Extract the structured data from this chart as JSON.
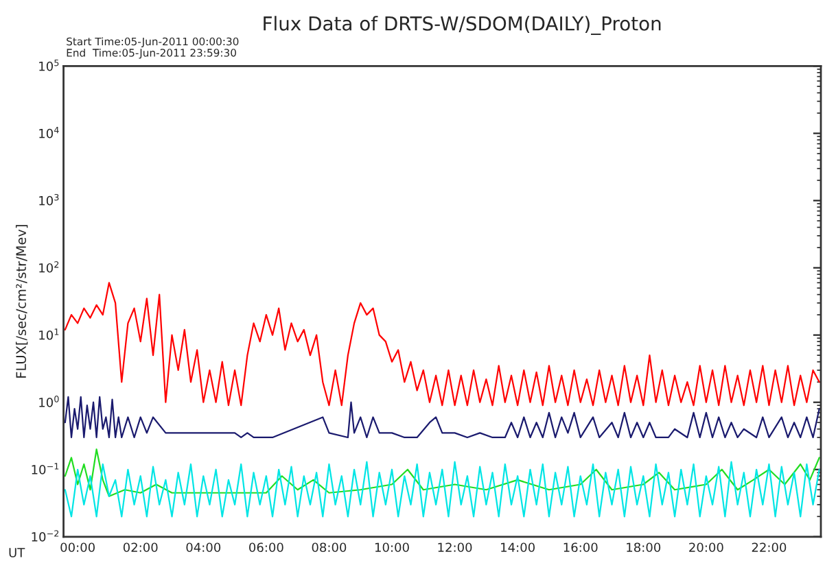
{
  "chart_data": {
    "type": "line",
    "title": "Flux Data of DRTS-W/SDOM(DAILY)_Proton",
    "ylabel": "FLUX[/sec/cm²/str/Mev]",
    "annotations": [
      "Start Time:05-Jun-2011 00:00:30",
      "End  Time:05-Jun-2011 23:59:30",
      "UT"
    ],
    "log": "y",
    "grid": false,
    "marker": "none",
    "line_style": "solid",
    "xlim": [
      -0.45,
      23.65
    ],
    "xticks": [
      {
        "value": 0,
        "label": "00:00"
      },
      {
        "value": 2,
        "label": "02:00"
      },
      {
        "value": 4,
        "label": "04:00"
      },
      {
        "value": 6,
        "label": "06:00"
      },
      {
        "value": 8,
        "label": "08:00"
      },
      {
        "value": 10,
        "label": "10:00"
      },
      {
        "value": 12,
        "label": "12:00"
      },
      {
        "value": 14,
        "label": "14:00"
      },
      {
        "value": 16,
        "label": "16:00"
      },
      {
        "value": 18,
        "label": "18:00"
      },
      {
        "value": 20,
        "label": "20:00"
      },
      {
        "value": 22,
        "label": "22:00"
      }
    ],
    "ylim": [
      0.01,
      100000
    ],
    "yticks": [
      {
        "value": 0.01,
        "label": "10$^{−2}$"
      },
      {
        "value": 0.1,
        "label": "10$^{−1}$"
      },
      {
        "value": 1,
        "label": "10$^{0}$"
      },
      {
        "value": 10,
        "label": "10$^{1}$"
      },
      {
        "value": 100,
        "label": "10$^{2}$"
      },
      {
        "value": 1000,
        "label": "10$^{3}$"
      },
      {
        "value": 10000,
        "label": "10$^{4}$"
      },
      {
        "value": 100000,
        "label": "10$^{5}$"
      }
    ],
    "series": [
      {
        "color": "#ff0000",
        "x": [
          -0.4,
          -0.2,
          0,
          0.2,
          0.4,
          0.6,
          0.8,
          1.0,
          1.2,
          1.4,
          1.6,
          1.8,
          2.0,
          2.2,
          2.4,
          2.6,
          2.8,
          3.0,
          3.2,
          3.4,
          3.6,
          3.8,
          4.0,
          4.2,
          4.4,
          4.6,
          4.8,
          5.0,
          5.2,
          5.4,
          5.6,
          5.8,
          6.0,
          6.2,
          6.4,
          6.6,
          6.8,
          7.0,
          7.2,
          7.4,
          7.6,
          7.8,
          8.0,
          8.2,
          8.4,
          8.6,
          8.8,
          9.0,
          9.2,
          9.4,
          9.6,
          9.8,
          10.0,
          10.2,
          10.4,
          10.6,
          10.8,
          11.0,
          11.2,
          11.4,
          11.6,
          11.8,
          12.0,
          12.2,
          12.4,
          12.6,
          12.8,
          13.0,
          13.2,
          13.4,
          13.6,
          13.8,
          14.0,
          14.2,
          14.4,
          14.6,
          14.8,
          15.0,
          15.2,
          15.4,
          15.6,
          15.8,
          16.0,
          16.2,
          16.4,
          16.6,
          16.8,
          17.0,
          17.2,
          17.4,
          17.6,
          17.8,
          18.0,
          18.2,
          18.4,
          18.6,
          18.8,
          19.0,
          19.2,
          19.4,
          19.6,
          19.8,
          20.0,
          20.2,
          20.4,
          20.6,
          20.8,
          21.0,
          21.2,
          21.4,
          21.6,
          21.8,
          22.0,
          22.2,
          22.4,
          22.6,
          22.8,
          23.0,
          23.2,
          23.4,
          23.6
        ],
        "values": [
          12,
          20,
          15,
          25,
          18,
          28,
          20,
          60,
          30,
          2,
          15,
          25,
          8,
          35,
          5,
          40,
          1,
          10,
          3,
          12,
          2,
          6,
          1,
          3,
          1,
          4,
          0.9,
          3,
          0.9,
          5,
          15,
          8,
          20,
          10,
          25,
          6,
          15,
          8,
          12,
          5,
          10,
          2,
          0.9,
          3,
          0.9,
          5,
          15,
          30,
          20,
          25,
          10,
          8,
          4,
          6,
          2,
          4,
          1.5,
          3,
          1,
          2.5,
          0.9,
          3,
          0.9,
          2.5,
          0.9,
          3,
          1,
          2.2,
          0.9,
          3.5,
          1,
          2.5,
          0.9,
          3,
          1,
          2.8,
          0.9,
          3.5,
          1,
          2.5,
          0.9,
          3,
          1,
          2.2,
          0.9,
          3,
          1,
          2.5,
          0.9,
          3.5,
          1,
          2.5,
          0.9,
          5,
          1,
          3,
          0.9,
          2.5,
          1,
          2,
          0.9,
          3.5,
          1,
          3,
          0.9,
          3.5,
          1,
          2.5,
          0.9,
          3,
          1,
          3.5,
          0.9,
          3,
          1,
          3.5,
          0.9,
          2.5,
          1,
          3,
          2
        ]
      },
      {
        "color": "#1a1a6e",
        "x": [
          -0.4,
          -0.3,
          -0.2,
          -0.1,
          0,
          0.1,
          0.2,
          0.3,
          0.4,
          0.5,
          0.6,
          0.7,
          0.8,
          0.9,
          1.0,
          1.1,
          1.2,
          1.3,
          1.4,
          1.6,
          1.8,
          2.0,
          2.2,
          2.4,
          2.8,
          5.0,
          5.2,
          5.4,
          5.6,
          6.2,
          7.8,
          8.0,
          8.6,
          8.7,
          8.8,
          9.0,
          9.2,
          9.4,
          9.6,
          10.0,
          10.4,
          10.8,
          11.2,
          11.4,
          11.6,
          12.0,
          12.4,
          12.8,
          13.2,
          13.6,
          13.8,
          14.0,
          14.2,
          14.4,
          14.6,
          14.8,
          15.0,
          15.2,
          15.4,
          15.6,
          15.8,
          16.0,
          16.4,
          16.6,
          17.0,
          17.2,
          17.4,
          17.6,
          17.8,
          18.0,
          18.2,
          18.4,
          18.8,
          19.0,
          19.4,
          19.6,
          19.8,
          20.0,
          20.2,
          20.4,
          20.6,
          20.8,
          21.0,
          21.2,
          21.6,
          21.8,
          22.0,
          22.4,
          22.6,
          22.8,
          23.0,
          23.2,
          23.4,
          23.6
        ],
        "values": [
          0.5,
          1.2,
          0.3,
          0.8,
          0.4,
          1.2,
          0.3,
          0.9,
          0.4,
          1.0,
          0.3,
          1.2,
          0.4,
          0.6,
          0.3,
          1.1,
          0.3,
          0.6,
          0.3,
          0.6,
          0.3,
          0.6,
          0.35,
          0.6,
          0.35,
          0.35,
          0.3,
          0.35,
          0.3,
          0.3,
          0.6,
          0.35,
          0.3,
          1.0,
          0.35,
          0.6,
          0.3,
          0.6,
          0.35,
          0.35,
          0.3,
          0.3,
          0.5,
          0.6,
          0.35,
          0.35,
          0.3,
          0.35,
          0.3,
          0.3,
          0.5,
          0.3,
          0.6,
          0.3,
          0.5,
          0.3,
          0.7,
          0.3,
          0.6,
          0.35,
          0.7,
          0.3,
          0.6,
          0.3,
          0.5,
          0.3,
          0.7,
          0.3,
          0.5,
          0.3,
          0.5,
          0.3,
          0.3,
          0.4,
          0.3,
          0.7,
          0.3,
          0.7,
          0.3,
          0.6,
          0.3,
          0.5,
          0.3,
          0.4,
          0.3,
          0.6,
          0.3,
          0.6,
          0.3,
          0.5,
          0.3,
          0.6,
          0.3,
          0.8
        ]
      },
      {
        "color": "#22dd22",
        "x": [
          -0.4,
          -0.2,
          0,
          0.2,
          0.4,
          0.6,
          0.8,
          1.0,
          1.5,
          2.0,
          2.5,
          3.0,
          4.0,
          5.0,
          6.0,
          6.5,
          7.0,
          7.5,
          8.0,
          9.0,
          10.0,
          10.5,
          11.0,
          12.0,
          13.0,
          14.0,
          15.0,
          16.0,
          16.5,
          17.0,
          18.0,
          18.5,
          19.0,
          20.0,
          20.5,
          21.0,
          21.5,
          22.0,
          22.5,
          23.0,
          23.3,
          23.6
        ],
        "values": [
          0.08,
          0.15,
          0.06,
          0.12,
          0.05,
          0.2,
          0.07,
          0.04,
          0.05,
          0.045,
          0.06,
          0.045,
          0.045,
          0.045,
          0.045,
          0.08,
          0.05,
          0.07,
          0.045,
          0.05,
          0.06,
          0.1,
          0.05,
          0.06,
          0.05,
          0.07,
          0.05,
          0.06,
          0.1,
          0.05,
          0.06,
          0.09,
          0.05,
          0.06,
          0.1,
          0.05,
          0.07,
          0.1,
          0.06,
          0.12,
          0.07,
          0.15
        ]
      },
      {
        "color": "#00e5e5",
        "x": [
          -0.4,
          -0.2,
          0,
          0.2,
          0.4,
          0.6,
          0.8,
          1.0,
          1.2,
          1.4,
          1.6,
          1.8,
          2.0,
          2.2,
          2.4,
          2.6,
          2.8,
          3.0,
          3.2,
          3.4,
          3.6,
          3.8,
          4.0,
          4.2,
          4.4,
          4.6,
          4.8,
          5.0,
          5.2,
          5.4,
          5.6,
          5.8,
          6.0,
          6.2,
          6.4,
          6.6,
          6.8,
          7.0,
          7.2,
          7.4,
          7.6,
          7.8,
          8.0,
          8.2,
          8.4,
          8.6,
          8.8,
          9.0,
          9.2,
          9.4,
          9.6,
          9.8,
          10.0,
          10.2,
          10.4,
          10.6,
          10.8,
          11.0,
          11.2,
          11.4,
          11.6,
          11.8,
          12.0,
          12.2,
          12.4,
          12.6,
          12.8,
          13.0,
          13.2,
          13.4,
          13.6,
          13.8,
          14.0,
          14.2,
          14.4,
          14.6,
          14.8,
          15.0,
          15.2,
          15.4,
          15.6,
          15.8,
          16.0,
          16.2,
          16.4,
          16.6,
          16.8,
          17.0,
          17.2,
          17.4,
          17.6,
          17.8,
          18.0,
          18.2,
          18.4,
          18.6,
          18.8,
          19.0,
          19.2,
          19.4,
          19.6,
          19.8,
          20.0,
          20.2,
          20.4,
          20.6,
          20.8,
          21.0,
          21.2,
          21.4,
          21.6,
          21.8,
          22.0,
          22.2,
          22.4,
          22.6,
          22.8,
          23.0,
          23.2,
          23.4,
          23.6
        ],
        "values": [
          0.05,
          0.02,
          0.1,
          0.03,
          0.08,
          0.02,
          0.12,
          0.04,
          0.07,
          0.02,
          0.1,
          0.03,
          0.08,
          0.02,
          0.11,
          0.03,
          0.07,
          0.02,
          0.09,
          0.03,
          0.12,
          0.02,
          0.08,
          0.03,
          0.1,
          0.02,
          0.07,
          0.03,
          0.12,
          0.02,
          0.09,
          0.03,
          0.08,
          0.02,
          0.1,
          0.03,
          0.11,
          0.02,
          0.08,
          0.03,
          0.09,
          0.02,
          0.12,
          0.03,
          0.08,
          0.02,
          0.1,
          0.03,
          0.13,
          0.02,
          0.09,
          0.03,
          0.1,
          0.02,
          0.08,
          0.03,
          0.12,
          0.02,
          0.09,
          0.03,
          0.1,
          0.02,
          0.13,
          0.03,
          0.08,
          0.02,
          0.11,
          0.03,
          0.09,
          0.02,
          0.12,
          0.03,
          0.08,
          0.02,
          0.1,
          0.03,
          0.12,
          0.02,
          0.09,
          0.03,
          0.11,
          0.02,
          0.08,
          0.03,
          0.12,
          0.02,
          0.09,
          0.03,
          0.1,
          0.02,
          0.11,
          0.03,
          0.08,
          0.02,
          0.12,
          0.03,
          0.09,
          0.02,
          0.1,
          0.03,
          0.12,
          0.02,
          0.08,
          0.03,
          0.11,
          0.02,
          0.13,
          0.03,
          0.09,
          0.02,
          0.1,
          0.03,
          0.12,
          0.02,
          0.11,
          0.03,
          0.09,
          0.02,
          0.12,
          0.03,
          0.1
        ]
      }
    ]
  }
}
